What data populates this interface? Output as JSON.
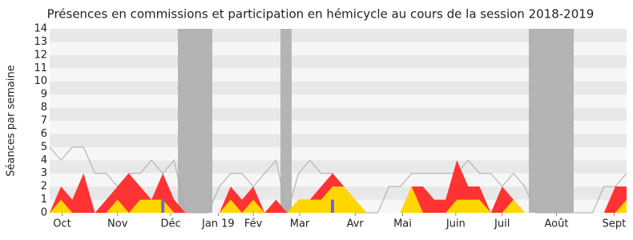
{
  "chart_data": {
    "type": "area",
    "title": "Présences en commissions et participation en hémicycle au cours de la session 2018-2019",
    "y_label": "Séances par semaine",
    "xlim": [
      0,
      51
    ],
    "xticks": [
      {
        "value": 1.1,
        "label": "Oct"
      },
      {
        "value": 6.0,
        "label": "Nov"
      },
      {
        "value": 10.7,
        "label": "Déc"
      },
      {
        "value": 14.9,
        "label": "Jan 19"
      },
      {
        "value": 18.0,
        "label": "Fév"
      },
      {
        "value": 22.1,
        "label": "Mar"
      },
      {
        "value": 27.0,
        "label": "Avr"
      },
      {
        "value": 31.2,
        "label": "Mai"
      },
      {
        "value": 35.9,
        "label": "Juin"
      },
      {
        "value": 40.0,
        "label": "Juil"
      },
      {
        "value": 44.8,
        "label": "Août"
      },
      {
        "value": 49.9,
        "label": "Sept"
      }
    ],
    "ylim": [
      0,
      14
    ],
    "yticks": [
      0,
      1,
      2,
      3,
      4,
      5,
      6,
      7,
      8,
      9,
      10,
      11,
      12,
      13,
      14
    ],
    "grid": true,
    "series": [
      {
        "kind": "line",
        "color": "#aaaaaa",
        "values": [
          5,
          4,
          5,
          5,
          3,
          3,
          2,
          3,
          3,
          4,
          3,
          4,
          0,
          0,
          0,
          2,
          3,
          3,
          2,
          3,
          4,
          0,
          3,
          4,
          3,
          3,
          2,
          0,
          0,
          0,
          2,
          2,
          3,
          3,
          3,
          3,
          3,
          4,
          3,
          3,
          2,
          3,
          2,
          0,
          0,
          0,
          0,
          0,
          0,
          2,
          2,
          3
        ]
      },
      {
        "kind": "area",
        "color": "#ff3333",
        "values": [
          0,
          2,
          1,
          3,
          0,
          1,
          2,
          3,
          2,
          1,
          3,
          1,
          0,
          0,
          0,
          0,
          2,
          1,
          2,
          0,
          1,
          0,
          1,
          1,
          2,
          3,
          2,
          1,
          0,
          0,
          0,
          0,
          2,
          2,
          1,
          1,
          4,
          2,
          2,
          0,
          2,
          1,
          0,
          0,
          0,
          0,
          0,
          0,
          0,
          0,
          2,
          2
        ]
      },
      {
        "kind": "area",
        "color": "#ffd700",
        "values": [
          0,
          1,
          0,
          0,
          0,
          0,
          1,
          0,
          1,
          1,
          1,
          0,
          0,
          0,
          0,
          0,
          1,
          0,
          1,
          0,
          0,
          0,
          1,
          1,
          1,
          2,
          2,
          1,
          0,
          0,
          0,
          0,
          2,
          0,
          0,
          0,
          1,
          1,
          1,
          0,
          0,
          1,
          0,
          0,
          0,
          0,
          0,
          0,
          0,
          0,
          0,
          1
        ]
      },
      {
        "kind": "bar",
        "color": "#6a6ae0",
        "values": [
          0,
          0,
          0,
          0,
          0,
          0,
          0,
          0,
          0,
          0,
          1,
          0,
          0,
          0,
          0,
          0,
          0,
          0,
          0,
          0,
          0,
          0,
          0,
          0,
          0,
          1,
          0,
          0,
          0,
          0,
          0,
          0,
          0,
          0,
          0,
          0,
          0,
          0,
          0,
          0,
          0,
          0,
          0,
          0,
          0,
          0,
          0,
          0,
          0,
          0,
          0,
          0
        ]
      }
    ]
  }
}
